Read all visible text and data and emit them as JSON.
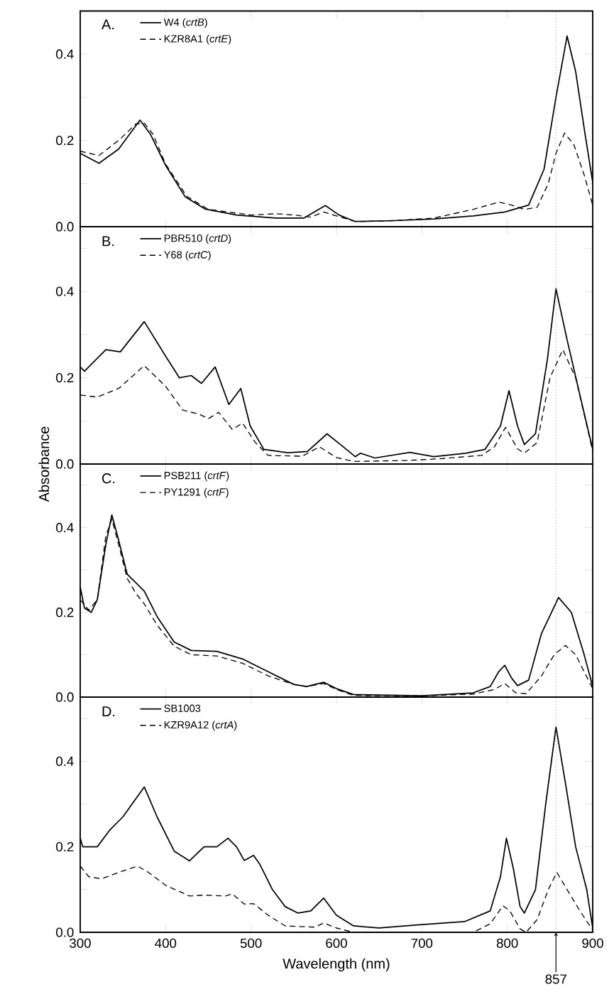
{
  "chart_data": [
    {
      "type": "line",
      "title": "A.",
      "xlim": [
        300,
        900
      ],
      "ylim": [
        0,
        0.5
      ],
      "xticks": [
        300,
        400,
        500,
        600,
        700,
        800,
        900
      ],
      "yticks": [
        {
          "value": 0,
          "label": "0.0"
        },
        {
          "value": 0.1,
          "label": null
        },
        {
          "value": 0.2,
          "label": "0.2"
        },
        {
          "value": 0.3,
          "label": null
        },
        {
          "value": 0.4,
          "label": "0.4"
        }
      ],
      "tick_labels": "y",
      "legend": "top left",
      "ref_lines": [
        {
          "axis": "x",
          "value": 857,
          "line_style": "dotted"
        }
      ],
      "series": [
        {
          "name": "W4 (*crtB*)",
          "color": "#000000",
          "line_style": "solid",
          "x": [
            300,
            322,
            345,
            370,
            382,
            400,
            423,
            446,
            483,
            529,
            562,
            587,
            603,
            622,
            668,
            714,
            760,
            797,
            825,
            843,
            857,
            870,
            880,
            891,
            900
          ],
          "values": [
            0.17,
            0.147,
            0.18,
            0.247,
            0.215,
            0.142,
            0.069,
            0.041,
            0.027,
            0.02,
            0.02,
            0.049,
            0.027,
            0.012,
            0.014,
            0.018,
            0.025,
            0.034,
            0.05,
            0.133,
            0.3,
            0.442,
            0.36,
            0.215,
            0.103
          ]
        },
        {
          "name": "KZR8A1 (*crtE*)",
          "color": "#000000",
          "line_style": "dashed",
          "x": [
            300,
            322,
            345,
            365,
            375,
            385,
            400,
            425,
            450,
            500,
            530,
            555,
            570,
            585,
            600,
            622,
            668,
            714,
            760,
            790,
            805,
            820,
            835,
            848,
            857,
            867,
            878,
            890,
            900
          ],
          "values": [
            0.175,
            0.165,
            0.2,
            0.238,
            0.24,
            0.215,
            0.145,
            0.07,
            0.04,
            0.027,
            0.03,
            0.026,
            0.022,
            0.034,
            0.025,
            0.012,
            0.014,
            0.02,
            0.04,
            0.057,
            0.05,
            0.04,
            0.045,
            0.1,
            0.17,
            0.217,
            0.19,
            0.12,
            0.05
          ]
        }
      ]
    },
    {
      "type": "line",
      "title": "B.",
      "ylabel": "Absorbance",
      "xlim": [
        300,
        900
      ],
      "ylim": [
        0,
        0.55
      ],
      "xticks": [
        300,
        400,
        500,
        600,
        700,
        800,
        900
      ],
      "yticks": [
        {
          "value": 0,
          "label": "0.0"
        },
        {
          "value": 0.1,
          "label": null
        },
        {
          "value": 0.2,
          "label": "0.2"
        },
        {
          "value": 0.3,
          "label": null
        },
        {
          "value": 0.4,
          "label": "0.4"
        },
        {
          "value": 0.5,
          "label": null
        }
      ],
      "tick_labels": "y",
      "legend": "top left",
      "ref_lines": [
        {
          "axis": "x",
          "value": 857,
          "line_style": "dotted"
        }
      ],
      "series": [
        {
          "name": "PBR510 (*crtD*)",
          "color": "#000000",
          "line_style": "solid",
          "x": [
            300,
            305,
            330,
            347,
            375,
            400,
            416,
            430,
            442,
            458,
            474,
            488,
            499,
            515,
            543,
            566,
            589,
            606,
            622,
            628,
            645,
            686,
            714,
            751,
            774,
            792,
            802,
            812,
            820,
            833,
            847,
            857,
            870,
            885,
            900
          ],
          "values": [
            0.225,
            0.215,
            0.265,
            0.26,
            0.33,
            0.25,
            0.2,
            0.205,
            0.187,
            0.225,
            0.138,
            0.175,
            0.088,
            0.034,
            0.026,
            0.029,
            0.07,
            0.043,
            0.017,
            0.025,
            0.014,
            0.027,
            0.017,
            0.025,
            0.034,
            0.088,
            0.17,
            0.088,
            0.045,
            0.07,
            0.243,
            0.406,
            0.288,
            0.16,
            0.034
          ]
        },
        {
          "name": "Y68 (*crtC*)",
          "color": "#000000",
          "line_style": "dashed",
          "x": [
            300,
            320,
            345,
            375,
            400,
            420,
            440,
            450,
            462,
            478,
            490,
            505,
            520,
            560,
            580,
            600,
            620,
            680,
            720,
            770,
            785,
            798,
            812,
            820,
            835,
            850,
            865,
            880,
            900
          ],
          "values": [
            0.16,
            0.155,
            0.175,
            0.228,
            0.18,
            0.125,
            0.115,
            0.105,
            0.12,
            0.08,
            0.095,
            0.05,
            0.02,
            0.018,
            0.04,
            0.015,
            0.006,
            0.008,
            0.012,
            0.02,
            0.04,
            0.085,
            0.035,
            0.025,
            0.05,
            0.2,
            0.265,
            0.2,
            0.03
          ]
        }
      ]
    },
    {
      "type": "line",
      "title": "C.",
      "xlim": [
        300,
        900
      ],
      "ylim": [
        0,
        0.55
      ],
      "xticks": [
        300,
        400,
        500,
        600,
        700,
        800,
        900
      ],
      "yticks": [
        {
          "value": 0,
          "label": "0.0"
        },
        {
          "value": 0.1,
          "label": null
        },
        {
          "value": 0.2,
          "label": "0.2"
        },
        {
          "value": 0.3,
          "label": null
        },
        {
          "value": 0.4,
          "label": "0.4"
        },
        {
          "value": 0.5,
          "label": null
        }
      ],
      "tick_labels": "y",
      "legend": "top left",
      "ref_lines": [
        {
          "axis": "x",
          "value": 857,
          "line_style": "dotted"
        }
      ],
      "series": [
        {
          "name": "PSB211 (*crtF*)",
          "color": "#000000",
          "line_style": "solid",
          "x": [
            300,
            305,
            313,
            320,
            330,
            337,
            345,
            355,
            365,
            375,
            390,
            410,
            430,
            460,
            490,
            520,
            550,
            565,
            585,
            600,
            620,
            700,
            760,
            780,
            790,
            797,
            805,
            812,
            825,
            840,
            860,
            875,
            890,
            900
          ],
          "values": [
            0.26,
            0.21,
            0.2,
            0.23,
            0.36,
            0.43,
            0.37,
            0.29,
            0.27,
            0.25,
            0.19,
            0.13,
            0.11,
            0.108,
            0.09,
            0.06,
            0.03,
            0.025,
            0.035,
            0.02,
            0.006,
            0.003,
            0.01,
            0.025,
            0.06,
            0.075,
            0.045,
            0.027,
            0.04,
            0.15,
            0.235,
            0.2,
            0.1,
            0.025
          ]
        },
        {
          "name": "PY1291 (*crtF*)",
          "color": "#000000",
          "line_style": "dashed",
          "x": [
            300,
            310,
            320,
            330,
            337,
            345,
            355,
            365,
            375,
            390,
            410,
            430,
            460,
            490,
            520,
            550,
            565,
            585,
            600,
            620,
            700,
            760,
            785,
            797,
            810,
            822,
            840,
            855,
            868,
            880,
            900
          ],
          "values": [
            0.23,
            0.205,
            0.23,
            0.38,
            0.42,
            0.36,
            0.28,
            0.245,
            0.22,
            0.17,
            0.12,
            0.1,
            0.097,
            0.08,
            0.05,
            0.03,
            0.025,
            0.032,
            0.018,
            0.004,
            0.003,
            0.007,
            0.018,
            0.032,
            0.01,
            0.008,
            0.05,
            0.1,
            0.122,
            0.1,
            0.02
          ]
        }
      ]
    },
    {
      "type": "line",
      "title": "D.",
      "xlabel": "Wavelength (nm)",
      "xlim": [
        300,
        900
      ],
      "ylim": [
        0,
        0.55
      ],
      "xticks": [
        300,
        400,
        500,
        600,
        700,
        800,
        900
      ],
      "yticks": [
        {
          "value": 0,
          "label": "0.0"
        },
        {
          "value": 0.1,
          "label": null
        },
        {
          "value": 0.2,
          "label": "0.2"
        },
        {
          "value": 0.3,
          "label": null
        },
        {
          "value": 0.4,
          "label": "0.4"
        },
        {
          "value": 0.5,
          "label": null
        }
      ],
      "legend": "top left",
      "ref_lines": [
        {
          "axis": "x",
          "value": 857,
          "line_style": "dotted",
          "label": "857"
        }
      ],
      "series": [
        {
          "name": "SB1003",
          "color": "#000000",
          "line_style": "solid",
          "x": [
            300,
            303,
            320,
            335,
            350,
            375,
            390,
            410,
            428,
            445,
            460,
            473,
            483,
            492,
            503,
            510,
            525,
            540,
            555,
            570,
            585,
            600,
            620,
            650,
            700,
            750,
            780,
            792,
            799,
            807,
            815,
            820,
            833,
            845,
            857,
            868,
            880,
            893,
            900
          ],
          "values": [
            0.22,
            0.2,
            0.2,
            0.24,
            0.27,
            0.34,
            0.27,
            0.19,
            0.167,
            0.2,
            0.2,
            0.22,
            0.2,
            0.168,
            0.18,
            0.16,
            0.1,
            0.06,
            0.045,
            0.05,
            0.08,
            0.04,
            0.015,
            0.01,
            0.018,
            0.025,
            0.05,
            0.13,
            0.22,
            0.15,
            0.06,
            0.045,
            0.1,
            0.3,
            0.48,
            0.35,
            0.2,
            0.1,
            0.01
          ]
        },
        {
          "name": "KZR9A12 (*crtA*)",
          "color": "#000000",
          "line_style": "dashed",
          "x": [
            300,
            310,
            325,
            345,
            367,
            380,
            400,
            428,
            445,
            470,
            478,
            492,
            503,
            520,
            540,
            575,
            585,
            600,
            620,
            760,
            780,
            795,
            803,
            815,
            822,
            835,
            848,
            858,
            870,
            885,
            900
          ],
          "values": [
            0.155,
            0.13,
            0.125,
            0.14,
            0.155,
            0.14,
            0.11,
            0.085,
            0.087,
            0.085,
            0.09,
            0.066,
            0.067,
            0.04,
            0.015,
            0.012,
            0.022,
            0.01,
            0.0,
            0.0,
            0.02,
            0.062,
            0.05,
            0.008,
            0.0,
            0.03,
            0.1,
            0.14,
            0.1,
            0.05,
            0.005
          ]
        }
      ]
    }
  ]
}
